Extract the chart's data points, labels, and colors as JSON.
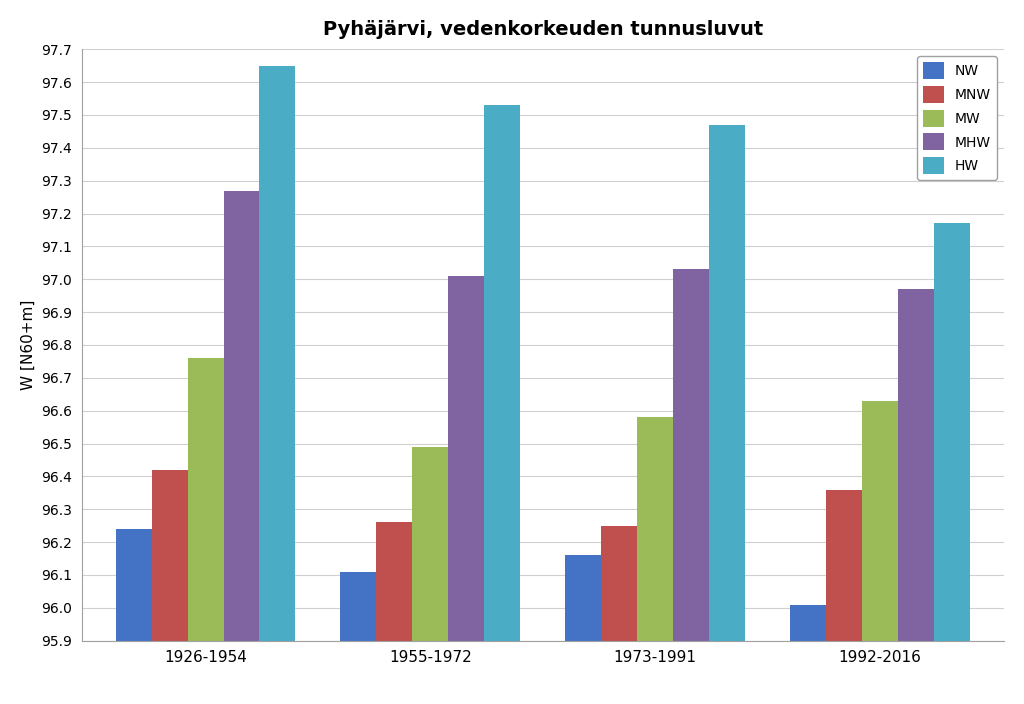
{
  "title": "Pyhäjärvi, vedenkorkeuden tunnusluvut",
  "ylabel": "W [N60+m]",
  "categories": [
    "1926-1954",
    "1955-1972",
    "1973-1991",
    "1992-2016"
  ],
  "series": {
    "NW": [
      96.24,
      96.11,
      96.16,
      96.01
    ],
    "MNW": [
      96.42,
      96.26,
      96.25,
      96.36
    ],
    "MW": [
      96.76,
      96.49,
      96.58,
      96.63
    ],
    "MHW": [
      97.27,
      97.01,
      97.03,
      96.97
    ],
    "HW": [
      97.65,
      97.53,
      97.47,
      97.17
    ]
  },
  "colors": {
    "NW": "#4472C4",
    "MNW": "#C0504D",
    "MW": "#9BBB59",
    "MHW": "#8064A2",
    "HW": "#4BACC6"
  },
  "ylim": [
    95.9,
    97.7
  ],
  "ybase": 95.9,
  "yticks": [
    95.9,
    96.0,
    96.1,
    96.2,
    96.3,
    96.4,
    96.5,
    96.6,
    96.7,
    96.8,
    96.9,
    97.0,
    97.1,
    97.2,
    97.3,
    97.4,
    97.5,
    97.6,
    97.7
  ],
  "bar_width": 0.16,
  "background_color": "#ffffff",
  "grid_color": "#d0d0d0",
  "legend_labels": [
    "NW",
    "MNW",
    "MW",
    "MHW",
    "HW"
  ]
}
